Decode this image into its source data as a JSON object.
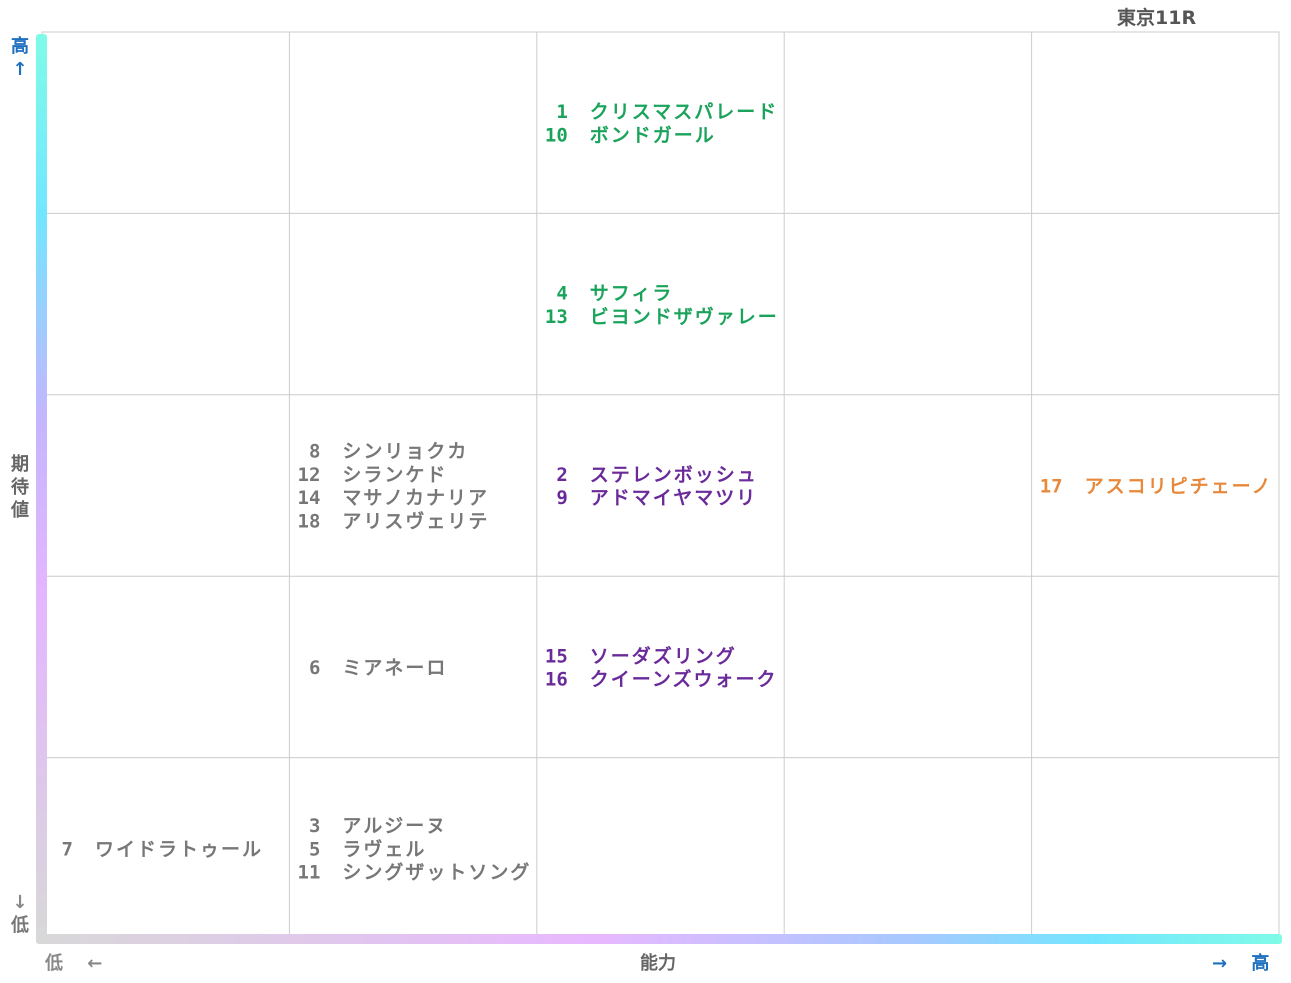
{
  "title": "東京11R",
  "axis": {
    "y_label": "期待値",
    "y_high": "高",
    "y_low": "低",
    "x_label": "能力",
    "x_low": "低",
    "x_high": "高",
    "up_arrow": "↑",
    "down_arrow": "↓",
    "left_arrow": "←",
    "right_arrow": "→"
  },
  "colors": {
    "green": "#1aa35a",
    "purple": "#6a2a9a",
    "gray": "#777777",
    "orange": "#e8883a",
    "blue_label": "#1f6fbf",
    "grid": "#cccccc"
  },
  "chart_data": {
    "type": "table",
    "columns": 5,
    "rows": 5,
    "x_axis": "能力",
    "y_axis": "期待値",
    "cells": [
      {
        "row": 0,
        "col": 2,
        "color": "green",
        "entries": [
          {
            "num": "1",
            "name": "クリスマスパレード"
          },
          {
            "num": "10",
            "name": "ボンドガール"
          }
        ]
      },
      {
        "row": 1,
        "col": 2,
        "color": "green",
        "entries": [
          {
            "num": "4",
            "name": "サフィラ"
          },
          {
            "num": "13",
            "name": "ビヨンドザヴァレー"
          }
        ]
      },
      {
        "row": 2,
        "col": 1,
        "color": "gray",
        "entries": [
          {
            "num": "8",
            "name": "シンリョクカ"
          },
          {
            "num": "12",
            "name": "シランケド"
          },
          {
            "num": "14",
            "name": "マサノカナリア"
          },
          {
            "num": "18",
            "name": "アリスヴェリテ"
          }
        ]
      },
      {
        "row": 2,
        "col": 2,
        "color": "purple",
        "entries": [
          {
            "num": "2",
            "name": "ステレンボッシュ"
          },
          {
            "num": "9",
            "name": "アドマイヤマツリ"
          }
        ]
      },
      {
        "row": 2,
        "col": 4,
        "color": "orange",
        "entries": [
          {
            "num": "17",
            "name": "アスコリピチェーノ"
          }
        ]
      },
      {
        "row": 3,
        "col": 1,
        "color": "gray",
        "entries": [
          {
            "num": "6",
            "name": "ミアネーロ"
          }
        ]
      },
      {
        "row": 3,
        "col": 2,
        "color": "purple",
        "entries": [
          {
            "num": "15",
            "name": "ソーダズリング"
          },
          {
            "num": "16",
            "name": "クイーンズウォーク"
          }
        ]
      },
      {
        "row": 4,
        "col": 0,
        "color": "gray",
        "entries": [
          {
            "num": "7",
            "name": "ワイドラトゥール"
          }
        ]
      },
      {
        "row": 4,
        "col": 1,
        "color": "gray",
        "entries": [
          {
            "num": "3",
            "name": "アルジーヌ"
          },
          {
            "num": "5",
            "name": "ラヴェル"
          },
          {
            "num": "11",
            "name": "シングザットソング"
          }
        ]
      }
    ]
  }
}
